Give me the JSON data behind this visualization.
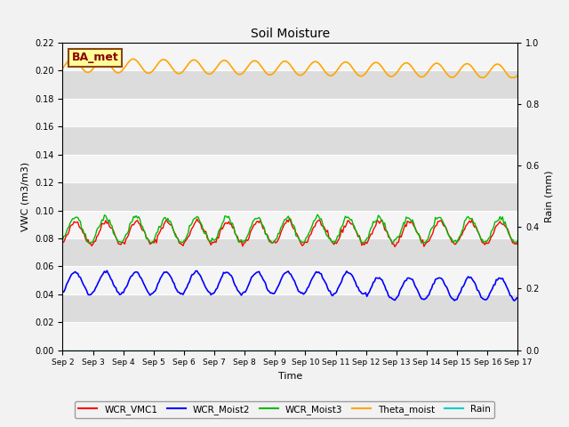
{
  "title": "Soil Moisture",
  "ylabel_left": "VWC (m3/m3)",
  "ylabel_right": "Rain (mm)",
  "xlabel": "Time",
  "ylim_left": [
    0.0,
    0.22
  ],
  "ylim_right": [
    0.0,
    1.0
  ],
  "yticks_left": [
    0.0,
    0.02,
    0.04,
    0.06,
    0.08,
    0.1,
    0.12,
    0.14,
    0.16,
    0.18,
    0.2,
    0.22
  ],
  "yticks_right": [
    0.0,
    0.2,
    0.4,
    0.6,
    0.8,
    1.0
  ],
  "annotation_text": "BA_met",
  "annotation_facecolor": "#FFFF99",
  "annotation_edgecolor": "#8B4513",
  "annotation_textcolor": "#8B0000",
  "line_colors": {
    "WCR_VMC1": "#FF0000",
    "WCR_Moist2": "#0000FF",
    "WCR_Moist3": "#00BB00",
    "Theta_moist": "#FFA500",
    "Rain": "#00CCCC"
  },
  "background_color": "#E8E8E8",
  "grid_color_light": "#F5F5F5",
  "grid_color_dark": "#DCDCDC",
  "fig_facecolor": "#F2F2F2"
}
